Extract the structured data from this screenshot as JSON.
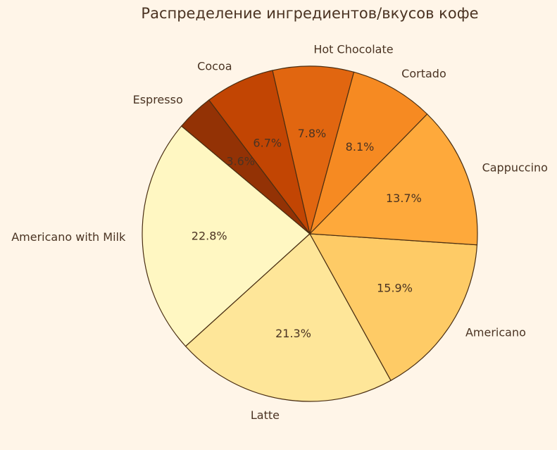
{
  "chart_data": {
    "type": "pie",
    "title": "Распределение ингредиентов/вкусов кофе",
    "start_angle_deg": 140,
    "direction": "counterclockwise",
    "slices": [
      {
        "label": "Americano with Milk",
        "value": 22.8,
        "pct_label": "22.8%",
        "color": "#fff7c2"
      },
      {
        "label": "Latte",
        "value": 21.3,
        "pct_label": "21.3%",
        "color": "#fee699"
      },
      {
        "label": "Americano",
        "value": 15.9,
        "pct_label": "15.9%",
        "color": "#fecb66"
      },
      {
        "label": "Cappuccino",
        "value": 13.7,
        "pct_label": "13.7%",
        "color": "#fea93b"
      },
      {
        "label": "Cortado",
        "value": 8.1,
        "pct_label": "8.1%",
        "color": "#f68a22"
      },
      {
        "label": "Hot Chocolate",
        "value": 7.8,
        "pct_label": "7.8%",
        "color": "#e16610"
      },
      {
        "label": "Cocoa",
        "value": 6.7,
        "pct_label": "6.7%",
        "color": "#c24503"
      },
      {
        "label": "Espresso",
        "value": 3.6,
        "pct_label": "3.6%",
        "color": "#933205"
      }
    ],
    "edge_color": "#4a2e12",
    "background": "#fff5e8"
  }
}
